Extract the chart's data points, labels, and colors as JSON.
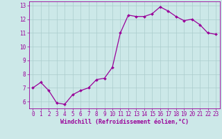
{
  "x": [
    0,
    1,
    2,
    3,
    4,
    5,
    6,
    7,
    8,
    9,
    10,
    11,
    12,
    13,
    14,
    15,
    16,
    17,
    18,
    19,
    20,
    21,
    22,
    23
  ],
  "y": [
    7.0,
    7.4,
    6.8,
    5.9,
    5.8,
    6.5,
    6.8,
    7.0,
    7.6,
    7.7,
    8.5,
    11.0,
    12.3,
    12.2,
    12.2,
    12.4,
    12.9,
    12.6,
    12.2,
    11.9,
    12.0,
    11.6,
    11.0,
    10.9
  ],
  "line_color": "#990099",
  "marker": "D",
  "marker_size": 2.0,
  "bg_color": "#cce8e8",
  "grid_color": "#aacccc",
  "xlabel": "Windchill (Refroidissement éolien,°C)",
  "ylabel": "",
  "title": "",
  "xlim": [
    -0.5,
    23.5
  ],
  "ylim": [
    5.5,
    13.3
  ],
  "yticks": [
    6,
    7,
    8,
    9,
    10,
    11,
    12,
    13
  ],
  "xticks": [
    0,
    1,
    2,
    3,
    4,
    5,
    6,
    7,
    8,
    9,
    10,
    11,
    12,
    13,
    14,
    15,
    16,
    17,
    18,
    19,
    20,
    21,
    22,
    23
  ],
  "tick_color": "#990099",
  "label_color": "#990099",
  "label_fontsize": 6.0,
  "tick_fontsize": 5.5,
  "font_family": "monospace"
}
